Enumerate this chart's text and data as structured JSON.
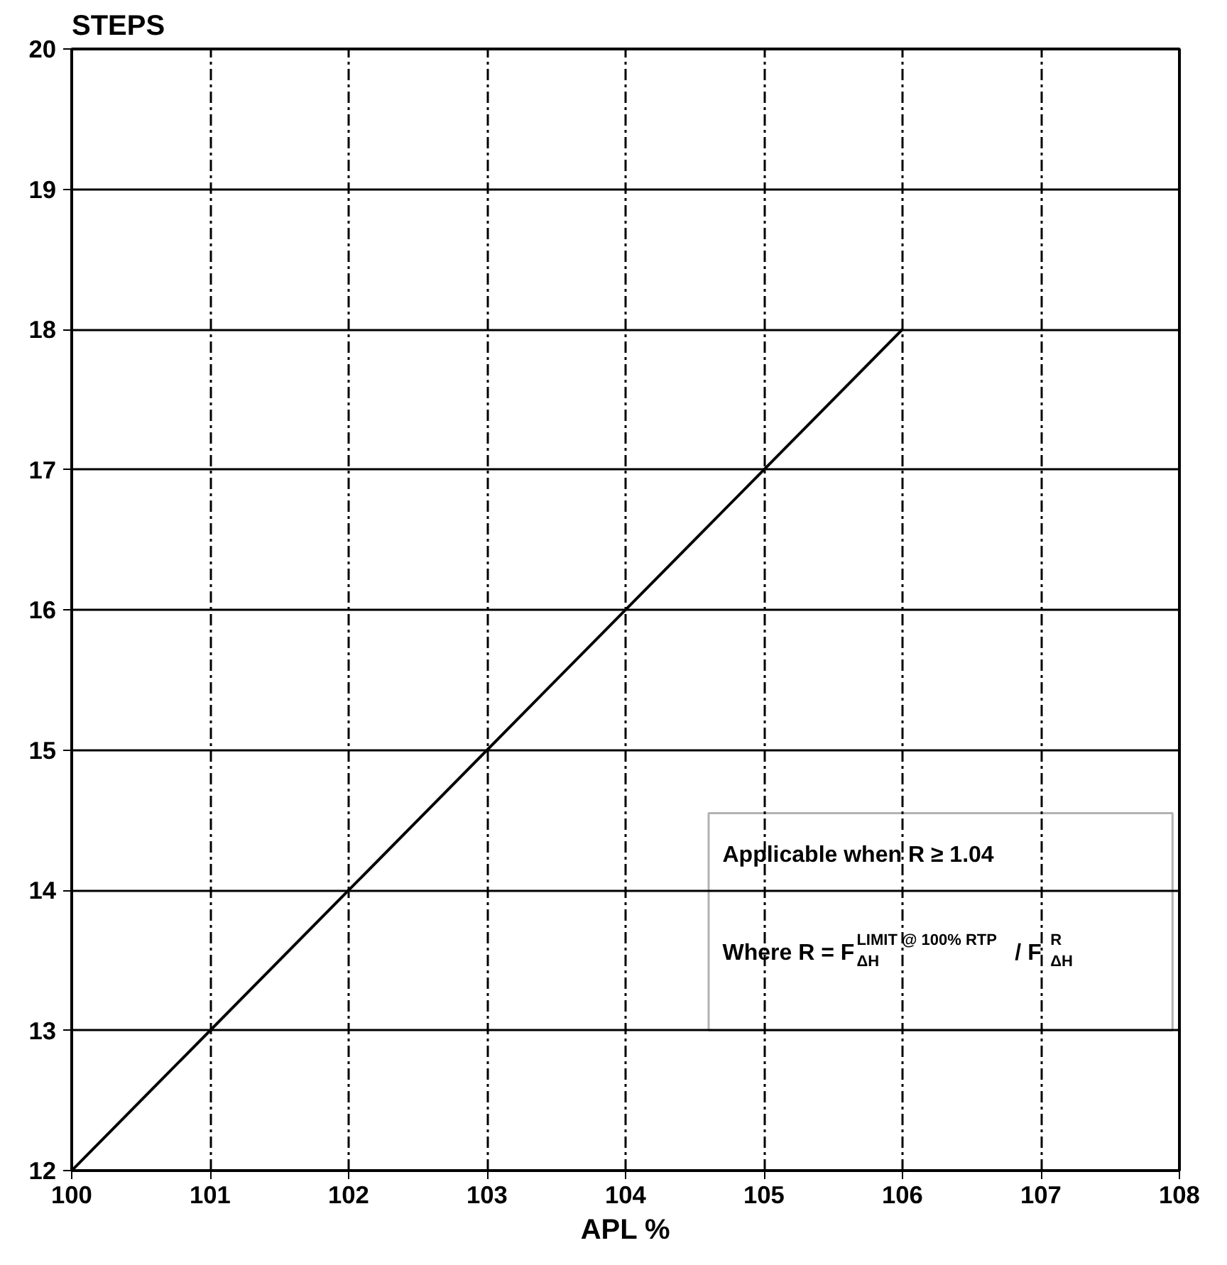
{
  "chart_data": {
    "type": "line",
    "ylabel": "STEPS",
    "xlabel": "APL %",
    "x": [
      100,
      106
    ],
    "series": [
      {
        "color": "#000000",
        "values": [
          12,
          18
        ]
      }
    ],
    "xlim": [
      100,
      108
    ],
    "ylim": [
      12,
      20
    ],
    "xticks": [
      100,
      101,
      102,
      103,
      104,
      105,
      106,
      107,
      108
    ],
    "yticks": [
      12,
      13,
      14,
      15,
      16,
      17,
      18,
      19,
      20
    ],
    "grid": true,
    "marker": "none",
    "line_style": "solid",
    "annotations": [
      "Applicable when R ≥ 1.04",
      "Where R = F$^{LIMIT @ 100% RTP}$$_{ΔH}$ / F$^{R}$$_{ΔH}$"
    ]
  }
}
